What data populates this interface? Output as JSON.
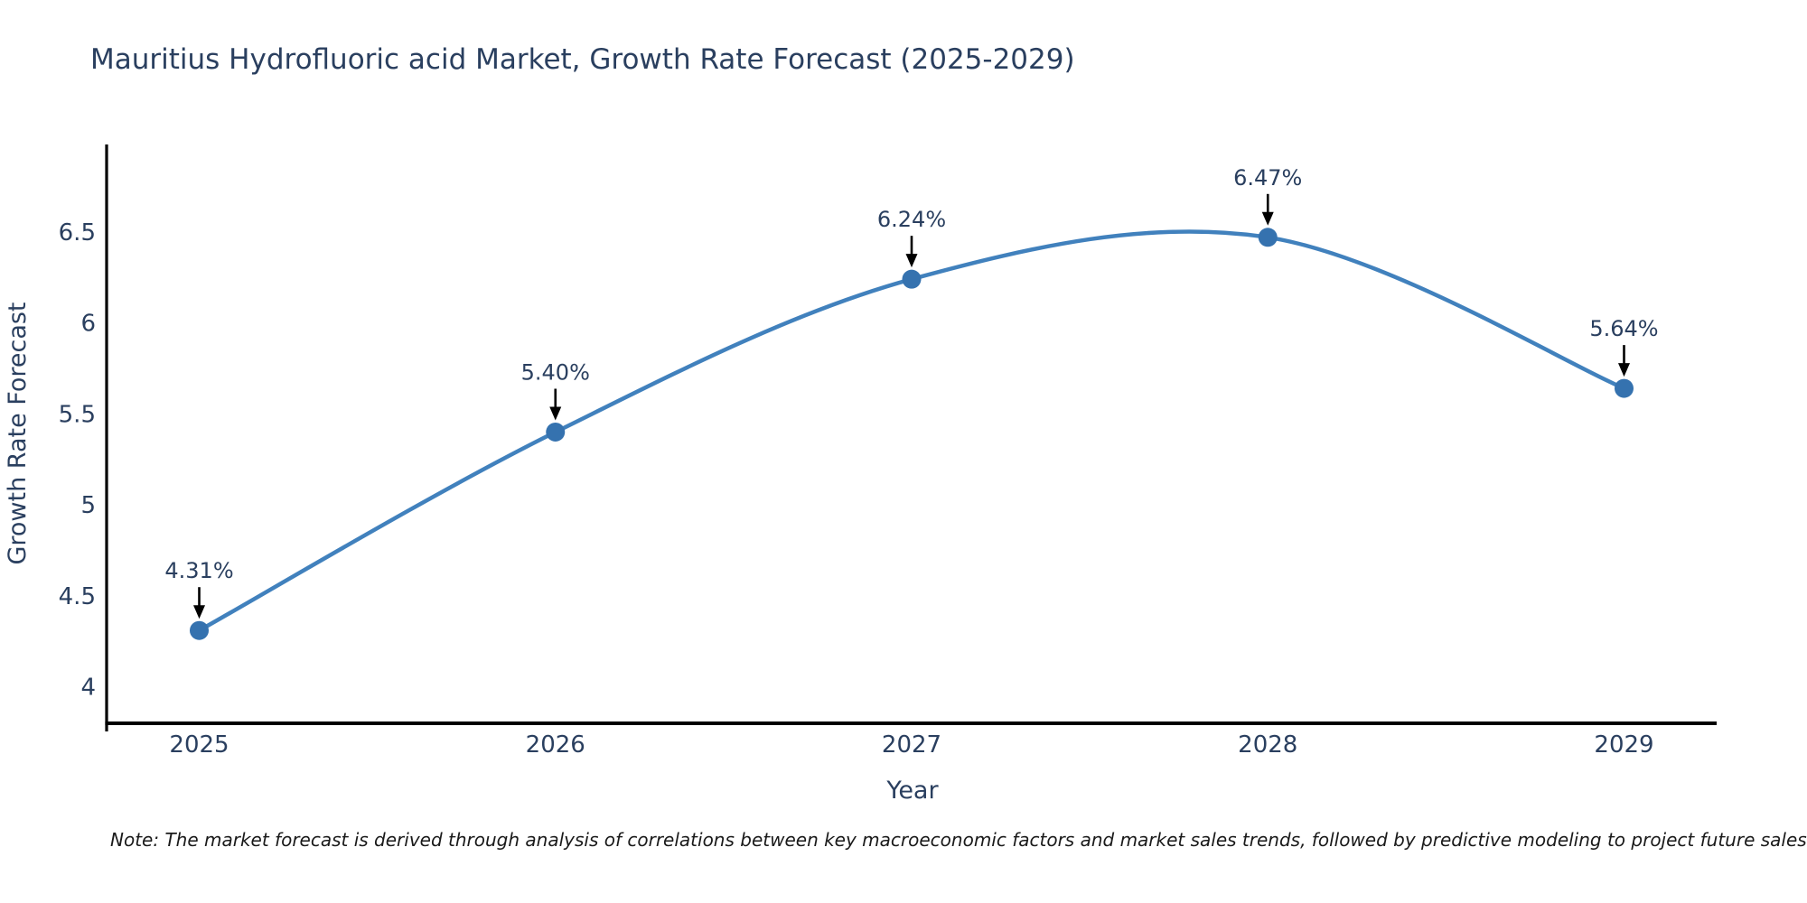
{
  "title": "Mauritius Hydrofluoric acid Market, Growth Rate Forecast (2025-2029)",
  "note": "Note: The market forecast is derived through analysis of correlations between key macroeconomic factors and market sales trends, followed by predictive modeling to project future sales",
  "colors": {
    "title": "#2a3f5f",
    "tick": "#2a3f5f",
    "axis_line": "#000000",
    "line": "#4181bd",
    "marker": "#3572af",
    "annotation": "#2a3f5f",
    "arrow": "#000000",
    "note": "#1a1a1a",
    "background": "#ffffff"
  },
  "chart_data": {
    "type": "line",
    "line_shape": "spline",
    "x": [
      2025,
      2026,
      2027,
      2028,
      2029
    ],
    "values": [
      4.31,
      5.4,
      6.24,
      6.47,
      5.64
    ],
    "labels": [
      "4.31%",
      "5.40%",
      "6.24%",
      "6.47%",
      "5.64%"
    ],
    "series_name": "Growth Rate Forecast",
    "title": "Mauritius Hydrofluoric acid Market, Growth Rate Forecast (2025-2029)",
    "xlabel": "Year",
    "ylabel": "Growth Rate Forecast",
    "xtick_values": [
      2025,
      2026,
      2027,
      2028,
      2029
    ],
    "xtick_labels": [
      "2025",
      "2026",
      "2027",
      "2028",
      "2029"
    ],
    "ytick_values": [
      4,
      4.5,
      5,
      5.5,
      6,
      6.5
    ],
    "ytick_labels": [
      "4",
      "4.5",
      "5",
      "5.5",
      "6",
      "6.5"
    ],
    "xlim": [
      2024.74,
      2029.26
    ],
    "ylim": [
      3.8,
      6.98
    ],
    "grid": false,
    "legend": "none",
    "annotations_style": "value labels with down arrows above each point"
  }
}
